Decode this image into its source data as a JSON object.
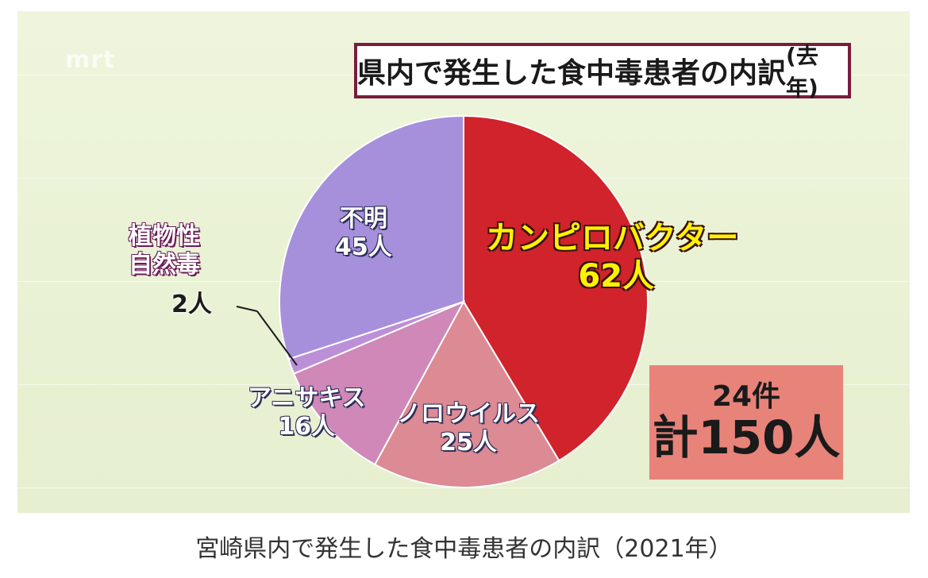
{
  "title": "県内で発生した食中毒患者の内訳",
  "title_suffix": "(去年)",
  "watermark": "mrt",
  "caption": "宮崎県内で発生した食中毒患者の内訳（2021年）",
  "total": {
    "count_label": "24件",
    "people_label": "計150人"
  },
  "chart_data": {
    "type": "pie",
    "title": "県内で発生した食中毒患者の内訳(去年)",
    "start_angle_deg": 0,
    "direction": "clockwise",
    "slices": [
      {
        "name": "カンピロバクター",
        "value": 62,
        "value_label": "62人",
        "color": "#d0232b"
      },
      {
        "name": "ノロウイルス",
        "value": 25,
        "value_label": "25人",
        "color": "#dc8a93"
      },
      {
        "name": "アニサキス",
        "value": 16,
        "value_label": "16人",
        "color": "#cf88b8"
      },
      {
        "name": "植物性自然毒",
        "name_lines": [
          "植物性",
          "自然毒"
        ],
        "value": 2,
        "value_label": "2人",
        "color": "#bc90d8"
      },
      {
        "name": "不明",
        "value": 45,
        "value_label": "45人",
        "color": "#a690dc"
      }
    ],
    "total_cases": 24,
    "total_people": 150
  }
}
